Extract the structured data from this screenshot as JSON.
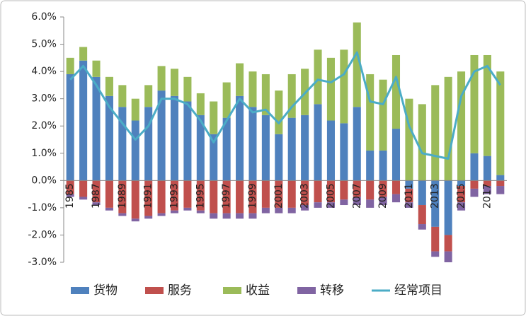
{
  "chart_data": {
    "type": "bar",
    "stacked": true,
    "categories": [
      "1985",
      null,
      "1987",
      null,
      "1989",
      null,
      "1991",
      null,
      "1993",
      null,
      "1995",
      null,
      "1997",
      null,
      "1999",
      null,
      "2001",
      null,
      "2003",
      null,
      "2005",
      null,
      "2007",
      null,
      "2009",
      null,
      "2011",
      null,
      "2013",
      null,
      "2015",
      null,
      "2017",
      null
    ],
    "series": [
      {
        "name": "货物",
        "color": "#4f81bd",
        "values": [
          3.9,
          4.4,
          3.8,
          3.1,
          2.7,
          2.2,
          2.7,
          3.3,
          3.1,
          2.9,
          2.4,
          1.7,
          2.3,
          3.1,
          2.7,
          2.4,
          1.7,
          2.3,
          2.4,
          2.8,
          2.2,
          2.1,
          2.7,
          1.1,
          1.1,
          1.9,
          -0.3,
          -0.9,
          -1.7,
          -2.0,
          -0.2,
          1.0,
          0.9,
          0.2
        ]
      },
      {
        "name": "服务",
        "color": "#c0504d",
        "values": [
          -0.5,
          -0.6,
          -0.8,
          -1.0,
          -1.2,
          -1.4,
          -1.3,
          -1.2,
          -1.1,
          -1.0,
          -1.1,
          -1.2,
          -1.2,
          -1.2,
          -1.2,
          -1.0,
          -1.0,
          -1.0,
          -0.9,
          -0.8,
          -0.8,
          -0.7,
          -0.6,
          -0.7,
          -0.6,
          -0.5,
          -0.5,
          -0.7,
          -0.9,
          -0.6,
          -0.6,
          -0.3,
          -0.2,
          -0.2
        ]
      },
      {
        "name": "收益",
        "color": "#9bbb59",
        "values": [
          0.6,
          0.5,
          0.6,
          0.7,
          0.8,
          0.8,
          0.8,
          0.9,
          1.0,
          0.9,
          0.8,
          1.2,
          1.3,
          1.2,
          1.3,
          1.5,
          1.6,
          1.6,
          1.7,
          2.0,
          2.3,
          2.7,
          3.1,
          2.8,
          2.6,
          2.7,
          3.0,
          2.8,
          3.5,
          3.8,
          4.0,
          3.6,
          3.7,
          3.8
        ]
      },
      {
        "name": "转移",
        "color": "#8064a2",
        "values": [
          -0.1,
          -0.1,
          -0.1,
          -0.1,
          -0.1,
          -0.1,
          -0.1,
          -0.1,
          -0.1,
          -0.1,
          -0.1,
          -0.2,
          -0.2,
          -0.2,
          -0.2,
          -0.2,
          -0.2,
          -0.2,
          -0.2,
          -0.2,
          -0.2,
          -0.2,
          -0.3,
          -0.3,
          -0.3,
          -0.3,
          -0.2,
          -0.2,
          -0.2,
          -0.4,
          -0.3,
          -0.3,
          -0.3,
          -0.3
        ]
      },
      {
        "name": "经常项目",
        "color": "#4bacc6",
        "type": "line",
        "values": [
          3.7,
          4.2,
          3.5,
          2.7,
          2.1,
          1.5,
          2.0,
          3.0,
          3.0,
          2.8,
          2.2,
          1.4,
          2.2,
          3.0,
          2.5,
          2.6,
          2.1,
          2.7,
          3.2,
          3.7,
          3.6,
          3.9,
          4.7,
          2.9,
          2.8,
          3.8,
          2.0,
          1.0,
          0.9,
          0.8,
          3.1,
          4.0,
          4.2,
          3.5
        ]
      }
    ],
    "ylim": [
      -3,
      6
    ],
    "yticks": [
      {
        "value": -3,
        "label": "-3.0%"
      },
      {
        "value": -2,
        "label": "-2.0%"
      },
      {
        "value": -1,
        "label": "-1.0%"
      },
      {
        "value": 0,
        "label": "0.0%"
      },
      {
        "value": 1,
        "label": "1.0%"
      },
      {
        "value": 2,
        "label": "2.0%"
      },
      {
        "value": 3,
        "label": "3.0%"
      },
      {
        "value": 4,
        "label": "4.0%"
      },
      {
        "value": 5,
        "label": "5.0%"
      },
      {
        "value": 6,
        "label": "6.0%"
      }
    ],
    "legend": "bottom"
  }
}
